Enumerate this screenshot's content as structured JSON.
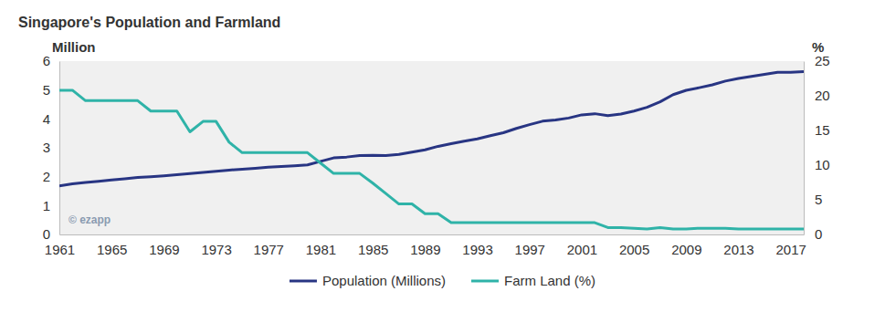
{
  "chart_data": {
    "type": "line",
    "title": "Singapore's Population and Farmland",
    "y_label": "Million",
    "y2_label": "%",
    "annotations": [
      "© ezapp"
    ],
    "x": [
      1961,
      1962,
      1963,
      1964,
      1965,
      1966,
      1967,
      1968,
      1969,
      1970,
      1971,
      1972,
      1973,
      1974,
      1975,
      1976,
      1977,
      1978,
      1979,
      1980,
      1981,
      1982,
      1983,
      1984,
      1985,
      1986,
      1987,
      1988,
      1989,
      1990,
      1991,
      1992,
      1993,
      1994,
      1995,
      1996,
      1997,
      1998,
      1999,
      2000,
      2001,
      2002,
      2003,
      2004,
      2005,
      2006,
      2007,
      2008,
      2009,
      2010,
      2011,
      2012,
      2013,
      2014,
      2015,
      2016,
      2017,
      2018
    ],
    "series": [
      {
        "name": "Population (Millions)",
        "color": "#283583",
        "values": [
          1.68,
          1.75,
          1.8,
          1.84,
          1.89,
          1.93,
          1.97,
          2.0,
          2.03,
          2.07,
          2.11,
          2.15,
          2.19,
          2.23,
          2.26,
          2.29,
          2.33,
          2.35,
          2.38,
          2.41,
          2.53,
          2.65,
          2.68,
          2.73,
          2.74,
          2.73,
          2.77,
          2.85,
          2.93,
          3.05,
          3.14,
          3.23,
          3.31,
          3.42,
          3.52,
          3.67,
          3.8,
          3.92,
          3.96,
          4.03,
          4.14,
          4.18,
          4.11,
          4.17,
          4.27,
          4.4,
          4.59,
          4.84,
          4.99,
          5.08,
          5.18,
          5.31,
          5.4,
          5.47,
          5.54,
          5.61,
          5.61,
          5.64
        ]
      },
      {
        "name": "Farm Land (%)",
        "color": "#2fb3a8",
        "axis": "y2",
        "values": [
          20.8,
          20.8,
          19.3,
          19.3,
          19.3,
          19.3,
          19.3,
          17.8,
          17.8,
          17.8,
          14.8,
          16.3,
          16.3,
          13.3,
          11.8,
          11.8,
          11.8,
          11.8,
          11.8,
          11.8,
          10.3,
          8.8,
          8.8,
          8.8,
          7.4,
          5.9,
          4.4,
          4.4,
          3.0,
          3.0,
          1.7,
          1.7,
          1.7,
          1.7,
          1.7,
          1.7,
          1.7,
          1.7,
          1.7,
          1.7,
          1.7,
          1.7,
          1.0,
          1.0,
          0.9,
          0.8,
          1.0,
          0.8,
          0.8,
          0.9,
          0.9,
          0.9,
          0.8,
          0.8,
          0.8,
          0.8,
          0.8,
          0.8
        ]
      }
    ],
    "xlim": [
      1961,
      2018
    ],
    "xticks": [
      1961,
      1965,
      1969,
      1973,
      1977,
      1981,
      1985,
      1989,
      1993,
      1997,
      2001,
      2005,
      2009,
      2013,
      2017
    ],
    "ylim": [
      0,
      6
    ],
    "yticks": [
      0,
      1,
      2,
      3,
      4,
      5,
      6
    ],
    "y2lim": [
      0,
      25
    ],
    "y2ticks": [
      0,
      5,
      10,
      15,
      20,
      25
    ],
    "grid": false,
    "legend": "bottom"
  }
}
